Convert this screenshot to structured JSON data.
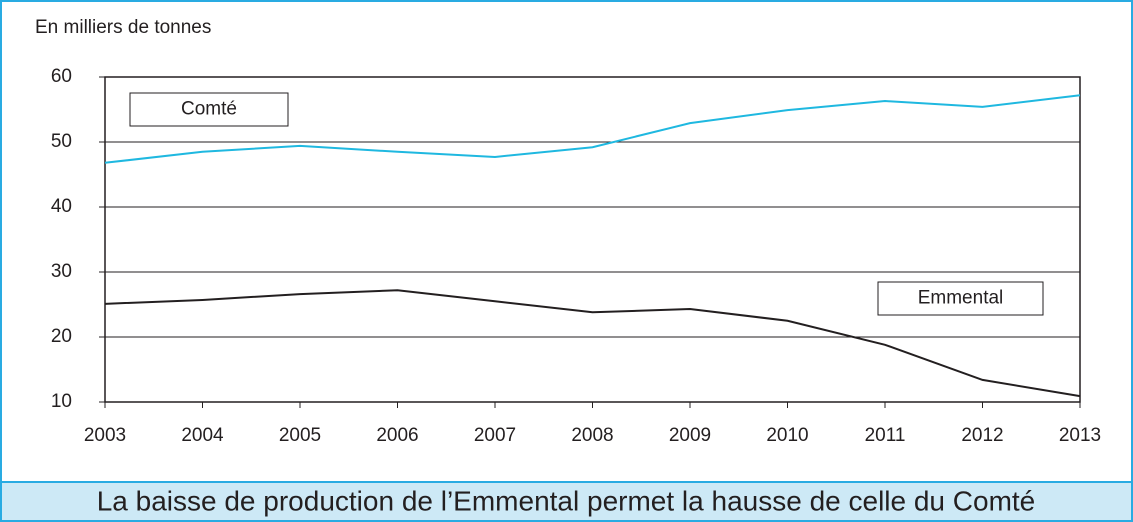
{
  "chart_data": {
    "type": "line",
    "ylabel": "En milliers de tonnes",
    "caption": "La baisse de production de l’Emmental permet la hausse de celle du Comté",
    "categories": [
      "2003",
      "2004",
      "2005",
      "2006",
      "2007",
      "2008",
      "2009",
      "2010",
      "2011",
      "2012",
      "2013"
    ],
    "series": [
      {
        "name": "Comté",
        "color": "#1fb8e0",
        "values": [
          46.8,
          48.5,
          49.4,
          48.5,
          47.7,
          49.2,
          52.9,
          54.9,
          56.3,
          55.4,
          57.2
        ]
      },
      {
        "name": "Emmental",
        "color": "#231f20",
        "values": [
          25.1,
          25.7,
          26.6,
          27.2,
          25.5,
          23.8,
          24.3,
          22.5,
          18.8,
          13.4,
          10.9
        ]
      }
    ],
    "ylim": [
      10,
      60
    ],
    "yticks": [
      10,
      20,
      30,
      40,
      50,
      60
    ],
    "grid": true
  }
}
